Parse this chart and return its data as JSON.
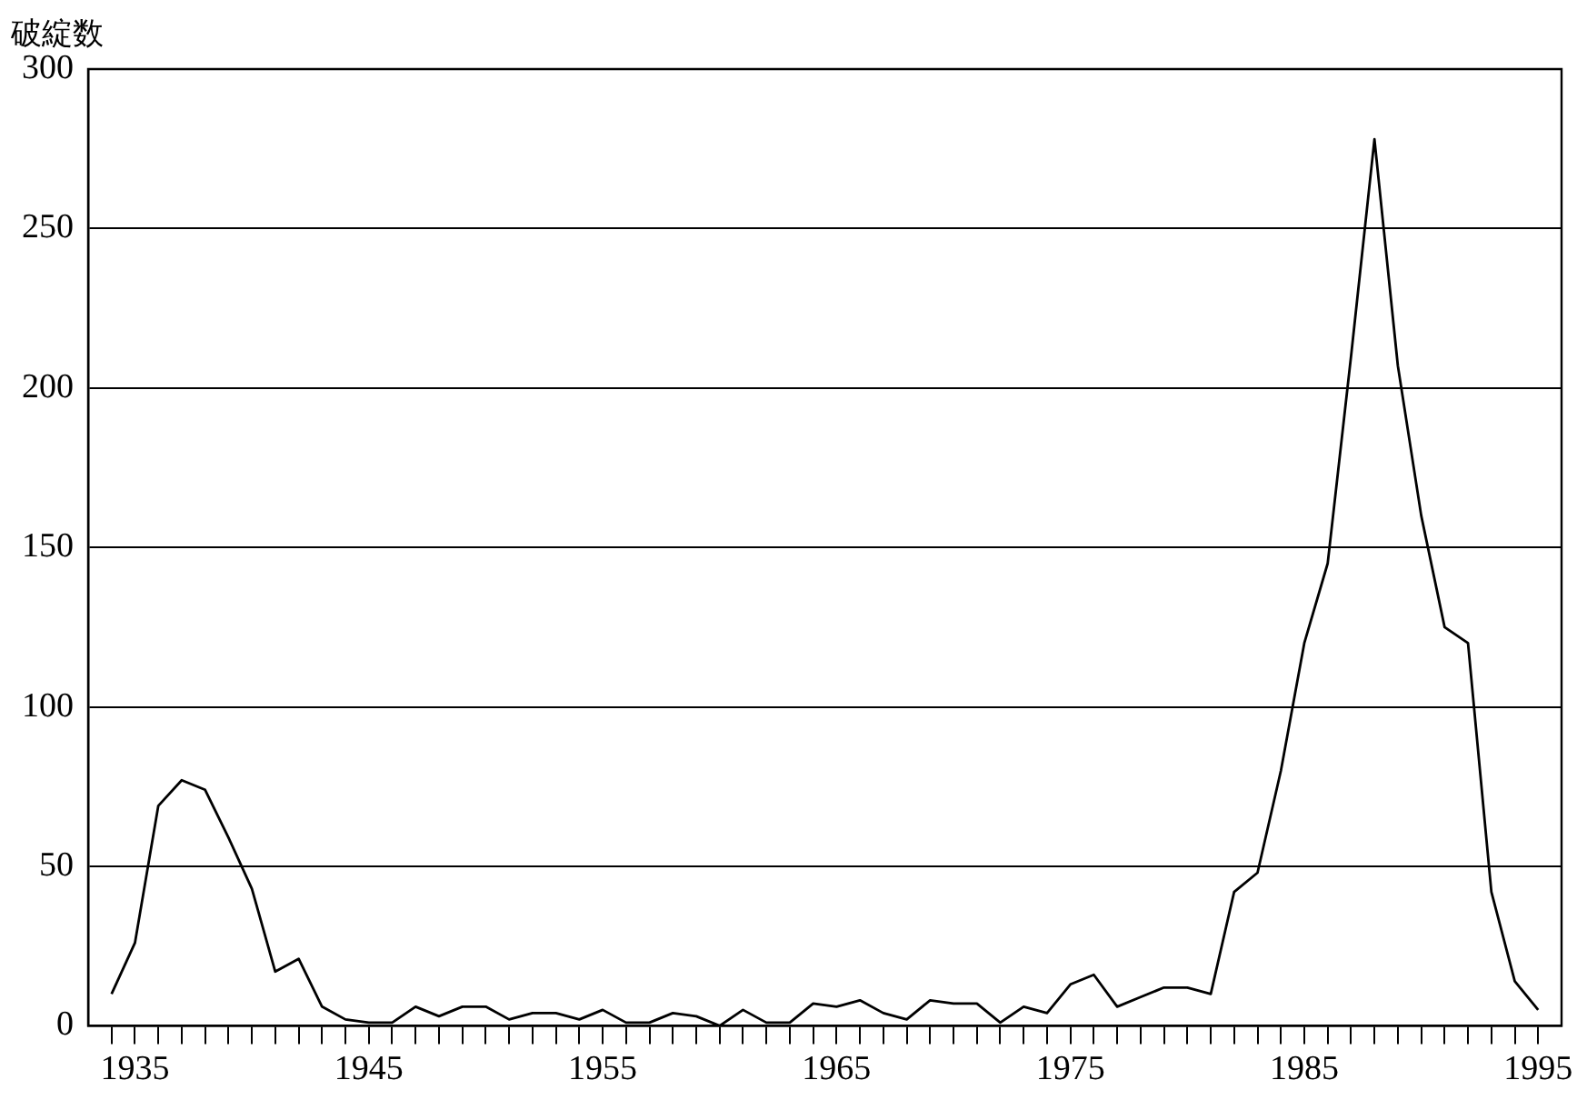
{
  "chart_data": {
    "type": "line",
    "ylabel": "破綻数",
    "x": [
      1934,
      1935,
      1936,
      1937,
      1938,
      1939,
      1940,
      1941,
      1942,
      1943,
      1944,
      1945,
      1946,
      1947,
      1948,
      1949,
      1950,
      1951,
      1952,
      1953,
      1954,
      1955,
      1956,
      1957,
      1958,
      1959,
      1960,
      1961,
      1962,
      1963,
      1964,
      1965,
      1966,
      1967,
      1968,
      1969,
      1970,
      1971,
      1972,
      1973,
      1974,
      1975,
      1976,
      1977,
      1978,
      1979,
      1980,
      1981,
      1982,
      1983,
      1984,
      1985,
      1986,
      1987,
      1988,
      1989,
      1990,
      1991,
      1992,
      1993,
      1994,
      1995
    ],
    "series": [
      {
        "color": "#000000",
        "values": [
          10,
          26,
          69,
          77,
          74,
          59,
          43,
          17,
          21,
          6,
          2,
          1,
          1,
          6,
          3,
          6,
          6,
          2,
          4,
          4,
          2,
          5,
          1,
          1,
          4,
          3,
          0,
          5,
          1,
          1,
          7,
          6,
          8,
          4,
          2,
          8,
          7,
          7,
          1,
          6,
          4,
          13,
          16,
          6,
          9,
          12,
          12,
          10,
          42,
          48,
          80,
          120,
          145,
          210,
          278,
          207,
          160,
          125,
          120,
          42,
          14,
          5
        ]
      }
    ],
    "xlim": [
      1933,
      1996
    ],
    "xticks": [
      {
        "value": 1934,
        "label": null
      },
      1935,
      {
        "value": 1936,
        "label": null
      },
      {
        "value": 1937,
        "label": null
      },
      {
        "value": 1938,
        "label": null
      },
      {
        "value": 1939,
        "label": null
      },
      {
        "value": 1940,
        "label": null
      },
      {
        "value": 1941,
        "label": null
      },
      {
        "value": 1942,
        "label": null
      },
      {
        "value": 1943,
        "label": null
      },
      {
        "value": 1944,
        "label": null
      },
      1945,
      {
        "value": 1946,
        "label": null
      },
      {
        "value": 1947,
        "label": null
      },
      {
        "value": 1948,
        "label": null
      },
      {
        "value": 1949,
        "label": null
      },
      {
        "value": 1950,
        "label": null
      },
      {
        "value": 1951,
        "label": null
      },
      {
        "value": 1952,
        "label": null
      },
      {
        "value": 1953,
        "label": null
      },
      {
        "value": 1954,
        "label": null
      },
      1955,
      {
        "value": 1956,
        "label": null
      },
      {
        "value": 1957,
        "label": null
      },
      {
        "value": 1958,
        "label": null
      },
      {
        "value": 1959,
        "label": null
      },
      {
        "value": 1960,
        "label": null
      },
      {
        "value": 1961,
        "label": null
      },
      {
        "value": 1962,
        "label": null
      },
      {
        "value": 1963,
        "label": null
      },
      {
        "value": 1964,
        "label": null
      },
      1965,
      {
        "value": 1966,
        "label": null
      },
      {
        "value": 1967,
        "label": null
      },
      {
        "value": 1968,
        "label": null
      },
      {
        "value": 1969,
        "label": null
      },
      {
        "value": 1970,
        "label": null
      },
      {
        "value": 1971,
        "label": null
      },
      {
        "value": 1972,
        "label": null
      },
      {
        "value": 1973,
        "label": null
      },
      {
        "value": 1974,
        "label": null
      },
      1975,
      {
        "value": 1976,
        "label": null
      },
      {
        "value": 1977,
        "label": null
      },
      {
        "value": 1978,
        "label": null
      },
      {
        "value": 1979,
        "label": null
      },
      {
        "value": 1980,
        "label": null
      },
      {
        "value": 1981,
        "label": null
      },
      {
        "value": 1982,
        "label": null
      },
      {
        "value": 1983,
        "label": null
      },
      {
        "value": 1984,
        "label": null
      },
      1985,
      {
        "value": 1986,
        "label": null
      },
      {
        "value": 1987,
        "label": null
      },
      {
        "value": 1988,
        "label": null
      },
      {
        "value": 1989,
        "label": null
      },
      {
        "value": 1990,
        "label": null
      },
      {
        "value": 1991,
        "label": null
      },
      {
        "value": 1992,
        "label": null
      },
      {
        "value": 1993,
        "label": null
      },
      {
        "value": 1994,
        "label": null
      },
      1995
    ],
    "ylim": [
      0,
      300
    ],
    "yticks": [
      0,
      50,
      100,
      150,
      200,
      250,
      300
    ],
    "grid": "y",
    "legend": false,
    "marker": "none",
    "line_style": "solid"
  }
}
